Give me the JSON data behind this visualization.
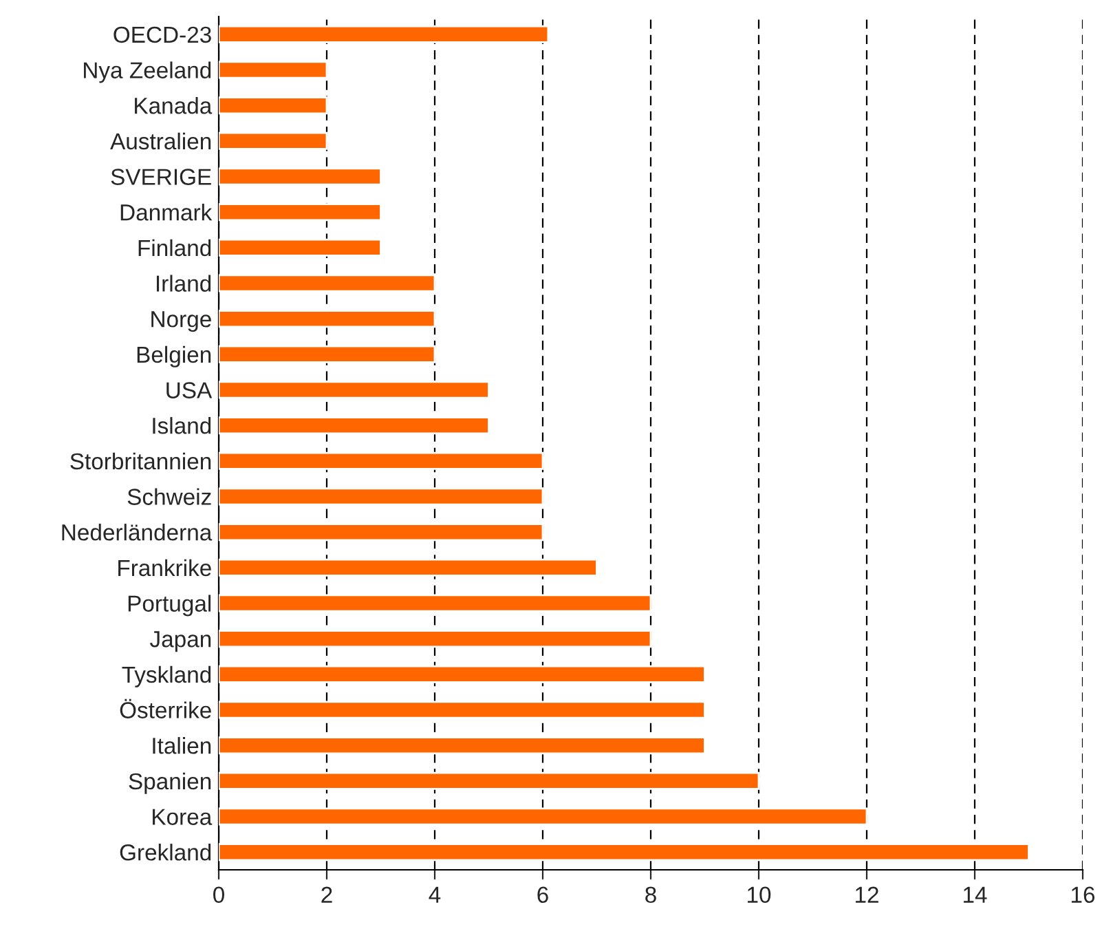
{
  "chart_data": {
    "type": "bar",
    "orientation": "horizontal",
    "categories": [
      "OECD-23",
      "Nya Zeeland",
      "Kanada",
      "Australien",
      "SVERIGE",
      "Danmark",
      "Finland",
      "Irland",
      "Norge",
      "Belgien",
      "USA",
      "Island",
      "Storbritannien",
      "Schweiz",
      "Nederländerna",
      "Frankrike",
      "Portugal",
      "Japan",
      "Tyskland",
      "Österrike",
      "Italien",
      "Spanien",
      "Korea",
      "Grekland"
    ],
    "values": [
      6.1,
      2,
      2,
      2,
      3,
      3,
      3,
      4,
      4,
      4,
      5,
      5,
      6,
      6,
      6,
      7,
      8,
      8,
      9,
      9,
      9,
      10,
      12,
      15
    ],
    "color": "#ff6600",
    "xlim": [
      0,
      16
    ],
    "xticks": [
      0,
      2,
      4,
      6,
      8,
      10,
      12,
      14,
      16
    ],
    "grid": "x",
    "legend": false
  }
}
